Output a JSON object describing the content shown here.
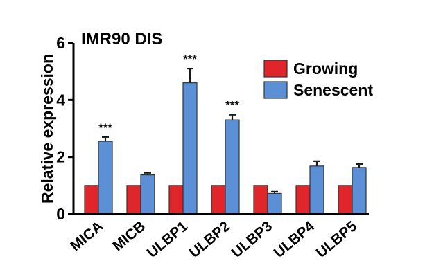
{
  "chart_data": {
    "type": "bar",
    "title": "IMR90 DIS",
    "ylabel": "Relative expression",
    "xlabel": "",
    "ylim": [
      0,
      6
    ],
    "yticks": [
      0,
      2,
      4,
      6
    ],
    "categories": [
      "MICA",
      "MICB",
      "ULBP1",
      "ULBP2",
      "ULBP3",
      "ULBP4",
      "ULBP5"
    ],
    "series": [
      {
        "name": "Growing",
        "color": "#e0262a",
        "values": [
          1,
          1,
          1,
          1,
          1,
          1,
          1
        ],
        "errors": [
          0,
          0,
          0,
          0,
          0,
          0,
          0
        ]
      },
      {
        "name": "Senescent",
        "color": "#5b8fd6",
        "values": [
          2.55,
          1.37,
          4.6,
          3.3,
          0.72,
          1.68,
          1.63
        ],
        "errors": [
          0.15,
          0.07,
          0.5,
          0.18,
          0.06,
          0.17,
          0.12
        ]
      }
    ],
    "annotations": [
      {
        "category": "MICA",
        "text": "***"
      },
      {
        "category": "ULBP1",
        "text": "***"
      },
      {
        "category": "ULBP2",
        "text": "***"
      }
    ],
    "legend": "top-right",
    "grid": false
  }
}
